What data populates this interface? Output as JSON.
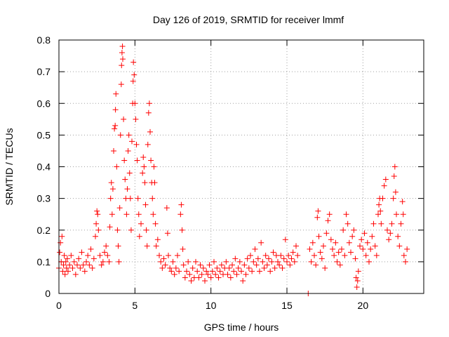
{
  "chart_data": {
    "type": "scatter",
    "title": "Day 126 of 2019, SRMTID for receiver lmmf",
    "xlabel": "GPS time / hours",
    "ylabel": "SRMTID / TECUs",
    "xlim": [
      0,
      24
    ],
    "ylim": [
      0,
      0.8
    ],
    "xticks": [
      0,
      5,
      10,
      15,
      20
    ],
    "yticks": [
      0,
      0.1,
      0.2,
      0.3,
      0.4,
      0.5,
      0.6,
      0.7,
      0.8
    ],
    "xtick_labels": [
      "0",
      "5",
      "10",
      "15",
      "20"
    ],
    "ytick_labels": [
      "0",
      "0.1",
      "0.2",
      "0.3",
      "0.4",
      "0.5",
      "0.6",
      "0.7",
      "0.8"
    ],
    "grid": true,
    "marker": "+",
    "marker_color": "#ff0000",
    "series": [
      {
        "name": "SRMTID",
        "points": [
          [
            0.0,
            0.08
          ],
          [
            0.05,
            0.13
          ],
          [
            0.1,
            0.16
          ],
          [
            0.15,
            0.1
          ],
          [
            0.2,
            0.18
          ],
          [
            0.25,
            0.07
          ],
          [
            0.3,
            0.09
          ],
          [
            0.35,
            0.12
          ],
          [
            0.4,
            0.06
          ],
          [
            0.45,
            0.1
          ],
          [
            0.5,
            0.08
          ],
          [
            0.55,
            0.11
          ],
          [
            0.6,
            0.07
          ],
          [
            0.7,
            0.09
          ],
          [
            0.8,
            0.12
          ],
          [
            0.9,
            0.08
          ],
          [
            1.0,
            0.1
          ],
          [
            1.1,
            0.06
          ],
          [
            1.2,
            0.09
          ],
          [
            1.3,
            0.11
          ],
          [
            1.4,
            0.08
          ],
          [
            1.5,
            0.13
          ],
          [
            1.6,
            0.09
          ],
          [
            1.7,
            0.07
          ],
          [
            1.8,
            0.1
          ],
          [
            1.9,
            0.12
          ],
          [
            2.0,
            0.09
          ],
          [
            2.1,
            0.14
          ],
          [
            2.2,
            0.08
          ],
          [
            2.3,
            0.11
          ],
          [
            2.4,
            0.18
          ],
          [
            2.45,
            0.22
          ],
          [
            2.5,
            0.26
          ],
          [
            2.55,
            0.25
          ],
          [
            2.6,
            0.2
          ],
          [
            2.7,
            0.12
          ],
          [
            2.8,
            0.09
          ],
          [
            2.9,
            0.1
          ],
          [
            3.0,
            0.13
          ],
          [
            3.1,
            0.15
          ],
          [
            3.2,
            0.12
          ],
          [
            3.3,
            0.1
          ],
          [
            3.35,
            0.21
          ],
          [
            3.4,
            0.3
          ],
          [
            3.45,
            0.35
          ],
          [
            3.5,
            0.25
          ],
          [
            3.55,
            0.33
          ],
          [
            3.6,
            0.45
          ],
          [
            3.65,
            0.52
          ],
          [
            3.7,
            0.53
          ],
          [
            3.72,
            0.58
          ],
          [
            3.75,
            0.63
          ],
          [
            3.8,
            0.4
          ],
          [
            3.85,
            0.2
          ],
          [
            3.9,
            0.15
          ],
          [
            3.95,
            0.1
          ],
          [
            4.0,
            0.27
          ],
          [
            4.05,
            0.5
          ],
          [
            4.1,
            0.66
          ],
          [
            4.12,
            0.72
          ],
          [
            4.15,
            0.76
          ],
          [
            4.18,
            0.78
          ],
          [
            4.2,
            0.74
          ],
          [
            4.25,
            0.55
          ],
          [
            4.3,
            0.42
          ],
          [
            4.35,
            0.36
          ],
          [
            4.4,
            0.3
          ],
          [
            4.45,
            0.25
          ],
          [
            4.5,
            0.33
          ],
          [
            4.55,
            0.45
          ],
          [
            4.6,
            0.5
          ],
          [
            4.65,
            0.38
          ],
          [
            4.7,
            0.3
          ],
          [
            4.75,
            0.2
          ],
          [
            4.8,
            0.48
          ],
          [
            4.85,
            0.6
          ],
          [
            4.88,
            0.67
          ],
          [
            4.9,
            0.73
          ],
          [
            4.95,
            0.69
          ],
          [
            5.0,
            0.6
          ],
          [
            5.05,
            0.55
          ],
          [
            5.1,
            0.47
          ],
          [
            5.15,
            0.42
          ],
          [
            5.2,
            0.3
          ],
          [
            5.25,
            0.25
          ],
          [
            5.3,
            0.18
          ],
          [
            5.4,
            0.22
          ],
          [
            5.5,
            0.38
          ],
          [
            5.55,
            0.43
          ],
          [
            5.6,
            0.4
          ],
          [
            5.65,
            0.35
          ],
          [
            5.7,
            0.28
          ],
          [
            5.75,
            0.2
          ],
          [
            5.8,
            0.15
          ],
          [
            5.85,
            0.47
          ],
          [
            5.9,
            0.57
          ],
          [
            5.95,
            0.6
          ],
          [
            6.0,
            0.51
          ],
          [
            6.05,
            0.42
          ],
          [
            6.1,
            0.35
          ],
          [
            6.15,
            0.3
          ],
          [
            6.2,
            0.25
          ],
          [
            6.25,
            0.4
          ],
          [
            6.3,
            0.35
          ],
          [
            6.35,
            0.22
          ],
          [
            6.4,
            0.15
          ],
          [
            6.5,
            0.17
          ],
          [
            6.6,
            0.12
          ],
          [
            6.7,
            0.1
          ],
          [
            6.8,
            0.08
          ],
          [
            6.9,
            0.11
          ],
          [
            7.0,
            0.09
          ],
          [
            7.1,
            0.27
          ],
          [
            7.15,
            0.19
          ],
          [
            7.2,
            0.12
          ],
          [
            7.3,
            0.08
          ],
          [
            7.4,
            0.07
          ],
          [
            7.5,
            0.1
          ],
          [
            7.6,
            0.06
          ],
          [
            7.7,
            0.08
          ],
          [
            7.8,
            0.12
          ],
          [
            7.9,
            0.07
          ],
          [
            8.0,
            0.25
          ],
          [
            8.05,
            0.28
          ],
          [
            8.1,
            0.2
          ],
          [
            8.15,
            0.14
          ],
          [
            8.2,
            0.09
          ],
          [
            8.3,
            0.05
          ],
          [
            8.4,
            0.07
          ],
          [
            8.5,
            0.1
          ],
          [
            8.6,
            0.06
          ],
          [
            8.7,
            0.04
          ],
          [
            8.8,
            0.08
          ],
          [
            8.9,
            0.05
          ],
          [
            9.0,
            0.1
          ],
          [
            9.1,
            0.07
          ],
          [
            9.2,
            0.05
          ],
          [
            9.3,
            0.09
          ],
          [
            9.4,
            0.06
          ],
          [
            9.5,
            0.08
          ],
          [
            9.6,
            0.04
          ],
          [
            9.7,
            0.07
          ],
          [
            9.8,
            0.06
          ],
          [
            9.9,
            0.09
          ],
          [
            10.0,
            0.05
          ],
          [
            10.1,
            0.07
          ],
          [
            10.2,
            0.1
          ],
          [
            10.3,
            0.06
          ],
          [
            10.4,
            0.08
          ],
          [
            10.5,
            0.05
          ],
          [
            10.6,
            0.07
          ],
          [
            10.7,
            0.09
          ],
          [
            10.8,
            0.06
          ],
          [
            10.9,
            0.08
          ],
          [
            11.0,
            0.1
          ],
          [
            11.1,
            0.06
          ],
          [
            11.2,
            0.08
          ],
          [
            11.3,
            0.05
          ],
          [
            11.4,
            0.09
          ],
          [
            11.5,
            0.07
          ],
          [
            11.6,
            0.11
          ],
          [
            11.7,
            0.06
          ],
          [
            11.8,
            0.08
          ],
          [
            11.9,
            0.1
          ],
          [
            12.0,
            0.07
          ],
          [
            12.1,
            0.04
          ],
          [
            12.2,
            0.09
          ],
          [
            12.3,
            0.06
          ],
          [
            12.4,
            0.11
          ],
          [
            12.5,
            0.08
          ],
          [
            12.6,
            0.12
          ],
          [
            12.7,
            0.07
          ],
          [
            12.8,
            0.1
          ],
          [
            12.9,
            0.14
          ],
          [
            13.0,
            0.09
          ],
          [
            13.1,
            0.11
          ],
          [
            13.2,
            0.07
          ],
          [
            13.3,
            0.16
          ],
          [
            13.4,
            0.1
          ],
          [
            13.5,
            0.08
          ],
          [
            13.6,
            0.12
          ],
          [
            13.7,
            0.09
          ],
          [
            13.8,
            0.11
          ],
          [
            13.9,
            0.07
          ],
          [
            14.0,
            0.1
          ],
          [
            14.1,
            0.13
          ],
          [
            14.2,
            0.08
          ],
          [
            14.3,
            0.12
          ],
          [
            14.4,
            0.1
          ],
          [
            14.5,
            0.09
          ],
          [
            14.6,
            0.12
          ],
          [
            14.7,
            0.08
          ],
          [
            14.8,
            0.11
          ],
          [
            14.9,
            0.17
          ],
          [
            15.0,
            0.1
          ],
          [
            15.1,
            0.12
          ],
          [
            15.2,
            0.09
          ],
          [
            15.3,
            0.11
          ],
          [
            15.4,
            0.13
          ],
          [
            15.5,
            0.1
          ],
          [
            15.6,
            0.15
          ],
          [
            15.7,
            0.12
          ],
          [
            16.4,
            0.0
          ],
          [
            16.5,
            0.14
          ],
          [
            16.6,
            0.1
          ],
          [
            16.7,
            0.16
          ],
          [
            16.8,
            0.12
          ],
          [
            16.9,
            0.09
          ],
          [
            17.0,
            0.24
          ],
          [
            17.05,
            0.26
          ],
          [
            17.1,
            0.18
          ],
          [
            17.2,
            0.13
          ],
          [
            17.3,
            0.11
          ],
          [
            17.4,
            0.15
          ],
          [
            17.5,
            0.08
          ],
          [
            17.6,
            0.19
          ],
          [
            17.7,
            0.23
          ],
          [
            17.8,
            0.25
          ],
          [
            17.9,
            0.17
          ],
          [
            18.0,
            0.14
          ],
          [
            18.1,
            0.12
          ],
          [
            18.2,
            0.16
          ],
          [
            18.3,
            0.1
          ],
          [
            18.4,
            0.13
          ],
          [
            18.5,
            0.09
          ],
          [
            18.6,
            0.14
          ],
          [
            18.7,
            0.2
          ],
          [
            18.8,
            0.12
          ],
          [
            18.9,
            0.25
          ],
          [
            19.0,
            0.22
          ],
          [
            19.1,
            0.16
          ],
          [
            19.2,
            0.13
          ],
          [
            19.3,
            0.18
          ],
          [
            19.4,
            0.2
          ],
          [
            19.5,
            0.11
          ],
          [
            19.55,
            0.05
          ],
          [
            19.6,
            0.02
          ],
          [
            19.65,
            0.04
          ],
          [
            19.7,
            0.07
          ],
          [
            19.8,
            0.15
          ],
          [
            19.9,
            0.17
          ],
          [
            20.0,
            0.14
          ],
          [
            20.1,
            0.19
          ],
          [
            20.2,
            0.12
          ],
          [
            20.3,
            0.16
          ],
          [
            20.4,
            0.1
          ],
          [
            20.5,
            0.14
          ],
          [
            20.6,
            0.18
          ],
          [
            20.7,
            0.22
          ],
          [
            20.8,
            0.15
          ],
          [
            20.9,
            0.12
          ],
          [
            21.0,
            0.25
          ],
          [
            21.05,
            0.28
          ],
          [
            21.1,
            0.3
          ],
          [
            21.15,
            0.26
          ],
          [
            21.2,
            0.22
          ],
          [
            21.3,
            0.3
          ],
          [
            21.4,
            0.34
          ],
          [
            21.5,
            0.36
          ],
          [
            21.6,
            0.2
          ],
          [
            21.7,
            0.17
          ],
          [
            21.8,
            0.19
          ],
          [
            21.9,
            0.22
          ],
          [
            22.0,
            0.3
          ],
          [
            22.05,
            0.37
          ],
          [
            22.1,
            0.4
          ],
          [
            22.15,
            0.32
          ],
          [
            22.2,
            0.25
          ],
          [
            22.3,
            0.18
          ],
          [
            22.4,
            0.15
          ],
          [
            22.5,
            0.22
          ],
          [
            22.6,
            0.29
          ],
          [
            22.65,
            0.25
          ],
          [
            22.7,
            0.12
          ],
          [
            22.8,
            0.1
          ],
          [
            22.9,
            0.14
          ]
        ]
      }
    ]
  }
}
